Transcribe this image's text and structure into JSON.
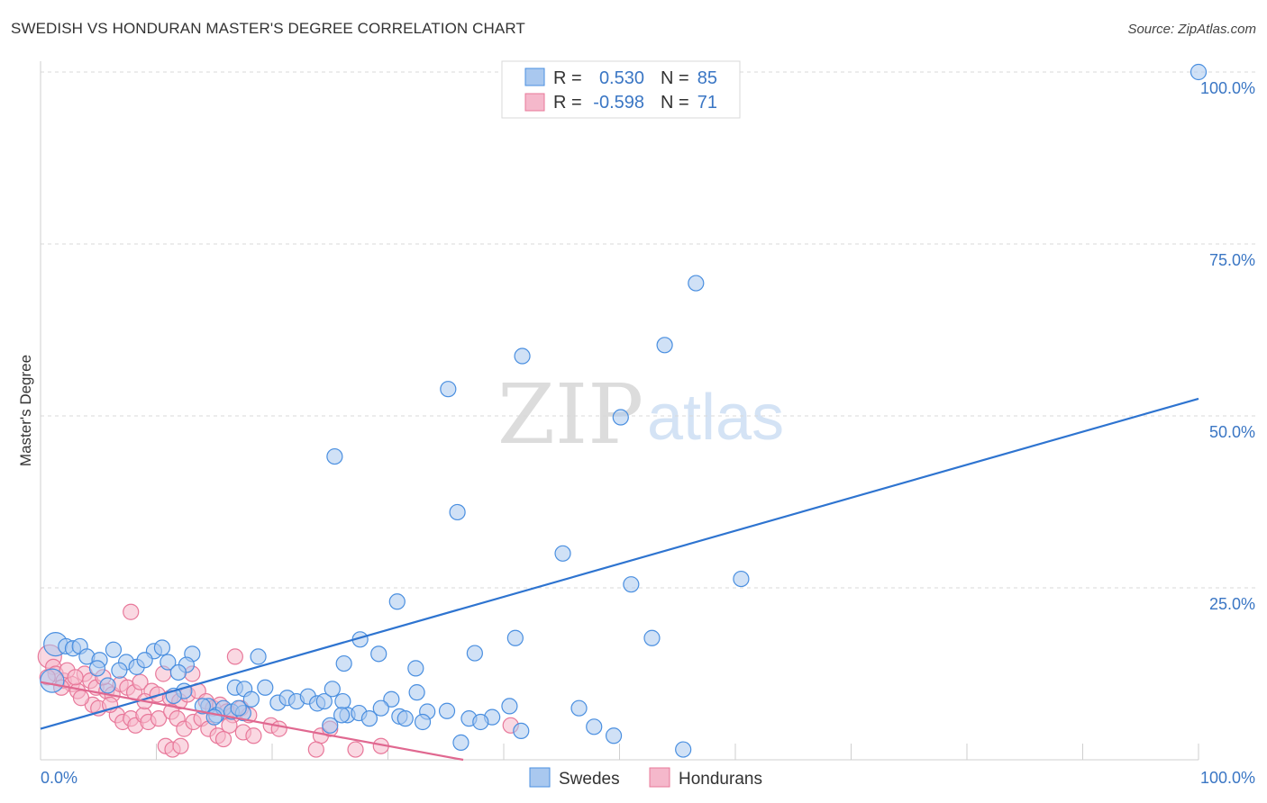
{
  "title": "SWEDISH VS HONDURAN MASTER'S DEGREE CORRELATION CHART",
  "source": "Source: ZipAtlas.com",
  "watermark": {
    "zip": "ZIP",
    "atlas": "atlas"
  },
  "colors": {
    "blue": "#4a8fe0",
    "blue_fill": "#a9c8ef",
    "blue_line": "#2e74d0",
    "pink": "#e8789a",
    "pink_fill": "#f5b8cb",
    "pink_line": "#e06890",
    "grid": "#d9d9d9",
    "tick_text": "#3a76c4"
  },
  "legend": {
    "rows": [
      {
        "r_label": "R =",
        "r_value": "0.530",
        "n_label": "N =",
        "n_value": "85"
      },
      {
        "r_label": "R =",
        "r_value": "-0.598",
        "n_label": "N =",
        "n_value": "71"
      }
    ]
  },
  "bottom_legend": {
    "swedes": "Swedes",
    "hondurans": "Hondurans"
  },
  "chart_data": {
    "type": "scatter",
    "title": "SWEDISH VS HONDURAN MASTER'S DEGREE CORRELATION CHART",
    "xlabel": "",
    "ylabel": "Master's Degree",
    "xlim": [
      0,
      100
    ],
    "ylim": [
      0,
      100
    ],
    "x_tick_labels": [
      "0.0%",
      "100.0%"
    ],
    "y_tick_labels": [
      "100.0%",
      "75.0%",
      "50.0%",
      "25.0%"
    ],
    "y_ticks": [
      100,
      75,
      50,
      25
    ],
    "series": [
      {
        "name": "Swedes",
        "r": 0.53,
        "n": 85,
        "trend": {
          "x": [
            0,
            100
          ],
          "y": [
            4.5,
            52.5
          ]
        },
        "points": [
          [
            100,
            100,
            1
          ],
          [
            56.6,
            69.3,
            1
          ],
          [
            53.9,
            60.3,
            1
          ],
          [
            41.6,
            58.7,
            1
          ],
          [
            35.2,
            53.9,
            1
          ],
          [
            50.1,
            49.8,
            1
          ],
          [
            25.4,
            44.1,
            1
          ],
          [
            36.0,
            36.0,
            1
          ],
          [
            45.1,
            30.0,
            1
          ],
          [
            51.0,
            25.5,
            1
          ],
          [
            60.5,
            26.3,
            1
          ],
          [
            30.8,
            23.0,
            1
          ],
          [
            1.3,
            16.8,
            2
          ],
          [
            2.2,
            16.5,
            1
          ],
          [
            2.8,
            16.2,
            1
          ],
          [
            3.4,
            16.5,
            1
          ],
          [
            6.3,
            16.0,
            1
          ],
          [
            9.8,
            15.8,
            1
          ],
          [
            10.5,
            16.3,
            1
          ],
          [
            13.1,
            15.4,
            1
          ],
          [
            18.8,
            15.0,
            1
          ],
          [
            27.6,
            17.5,
            1
          ],
          [
            29.2,
            15.4,
            1
          ],
          [
            37.5,
            15.5,
            1
          ],
          [
            41.0,
            17.7,
            1
          ],
          [
            52.8,
            17.7,
            1
          ],
          [
            4.0,
            15.0,
            1
          ],
          [
            5.1,
            14.5,
            1
          ],
          [
            7.4,
            14.2,
            1
          ],
          [
            8.3,
            13.5,
            1
          ],
          [
            9.0,
            14.5,
            1
          ],
          [
            11.0,
            14.2,
            1
          ],
          [
            4.9,
            13.3,
            1
          ],
          [
            6.8,
            13.0,
            1
          ],
          [
            12.6,
            13.8,
            1
          ],
          [
            11.9,
            12.7,
            1
          ],
          [
            26.2,
            14.0,
            1
          ],
          [
            32.4,
            13.3,
            1
          ],
          [
            1.0,
            11.5,
            2
          ],
          [
            5.8,
            10.8,
            1
          ],
          [
            12.4,
            10.0,
            1
          ],
          [
            11.5,
            9.3,
            1
          ],
          [
            16.8,
            10.5,
            1
          ],
          [
            17.6,
            10.3,
            1
          ],
          [
            18.2,
            8.8,
            1
          ],
          [
            19.4,
            10.5,
            1
          ],
          [
            20.5,
            8.3,
            1
          ],
          [
            21.3,
            9.0,
            1
          ],
          [
            22.1,
            8.5,
            1
          ],
          [
            23.1,
            9.2,
            1
          ],
          [
            23.9,
            8.2,
            1
          ],
          [
            24.5,
            8.5,
            1
          ],
          [
            25.2,
            10.3,
            1
          ],
          [
            14.5,
            7.8,
            1
          ],
          [
            15.2,
            6.5,
            1
          ],
          [
            15.8,
            7.5,
            1
          ],
          [
            16.5,
            7.0,
            1
          ],
          [
            17.5,
            6.8,
            1
          ],
          [
            14.0,
            7.8,
            1
          ],
          [
            15.0,
            6.2,
            1
          ],
          [
            17.1,
            7.5,
            1
          ],
          [
            30.3,
            8.8,
            1
          ],
          [
            32.5,
            9.8,
            1
          ],
          [
            33.4,
            7.0,
            1
          ],
          [
            35.1,
            7.1,
            1
          ],
          [
            26.1,
            8.5,
            1
          ],
          [
            26.5,
            6.5,
            1
          ],
          [
            27.5,
            6.8,
            1
          ],
          [
            29.4,
            7.5,
            1
          ],
          [
            31.0,
            6.3,
            1
          ],
          [
            33.0,
            5.5,
            1
          ],
          [
            37.0,
            6.0,
            1
          ],
          [
            39.0,
            6.2,
            1
          ],
          [
            28.4,
            6.0,
            1
          ],
          [
            31.5,
            6.0,
            1
          ],
          [
            25.0,
            5.0,
            1
          ],
          [
            26.0,
            6.5,
            1
          ],
          [
            38.0,
            5.5,
            1
          ],
          [
            40.5,
            7.8,
            1
          ],
          [
            41.5,
            4.2,
            1
          ],
          [
            46.5,
            7.5,
            1
          ],
          [
            47.8,
            4.8,
            1
          ],
          [
            49.5,
            3.5,
            1
          ],
          [
            36.3,
            2.5,
            1
          ],
          [
            55.5,
            1.5,
            1
          ]
        ]
      },
      {
        "name": "Hondurans",
        "r": -0.598,
        "n": 71,
        "trend": {
          "x": [
            0,
            36.5
          ],
          "y": [
            11.3,
            0
          ]
        },
        "points": [
          [
            0.8,
            15.0,
            2
          ],
          [
            1.1,
            13.5,
            1
          ],
          [
            1.3,
            12.5,
            1
          ],
          [
            0.6,
            12.0,
            1
          ],
          [
            2.0,
            11.5,
            1
          ],
          [
            2.7,
            11.0,
            1
          ],
          [
            3.2,
            10.0,
            1
          ],
          [
            3.8,
            12.5,
            1
          ],
          [
            4.3,
            11.5,
            1
          ],
          [
            4.8,
            10.5,
            1
          ],
          [
            5.7,
            10.0,
            1
          ],
          [
            6.2,
            9.5,
            1
          ],
          [
            6.9,
            11.0,
            1
          ],
          [
            7.5,
            10.5,
            1
          ],
          [
            8.1,
            9.8,
            1
          ],
          [
            8.6,
            11.3,
            1
          ],
          [
            7.8,
            21.5,
            1
          ],
          [
            9.6,
            10.0,
            1
          ],
          [
            10.1,
            9.5,
            1
          ],
          [
            10.6,
            12.5,
            1
          ],
          [
            11.2,
            9.0,
            1
          ],
          [
            12.0,
            8.5,
            1
          ],
          [
            12.7,
            9.5,
            1
          ],
          [
            13.1,
            12.5,
            1
          ],
          [
            13.6,
            10.0,
            1
          ],
          [
            14.3,
            8.5,
            1
          ],
          [
            14.9,
            7.5,
            1
          ],
          [
            15.5,
            8.0,
            1
          ],
          [
            16.1,
            7.0,
            1
          ],
          [
            16.6,
            6.5,
            1
          ],
          [
            16.8,
            15.0,
            1
          ],
          [
            17.3,
            7.5,
            1
          ],
          [
            18.0,
            6.5,
            1
          ],
          [
            4.5,
            8.0,
            1
          ],
          [
            5.0,
            7.5,
            1
          ],
          [
            6.6,
            6.5,
            1
          ],
          [
            7.1,
            5.5,
            1
          ],
          [
            7.8,
            6.0,
            1
          ],
          [
            8.2,
            5.0,
            1
          ],
          [
            8.9,
            6.5,
            1
          ],
          [
            9.3,
            5.5,
            1
          ],
          [
            10.2,
            6.0,
            1
          ],
          [
            11.3,
            7.0,
            1
          ],
          [
            11.8,
            6.0,
            1
          ],
          [
            12.4,
            4.5,
            1
          ],
          [
            13.2,
            5.5,
            1
          ],
          [
            13.9,
            6.0,
            1
          ],
          [
            14.5,
            4.5,
            1
          ],
          [
            15.3,
            3.5,
            1
          ],
          [
            16.3,
            5.0,
            1
          ],
          [
            17.5,
            4.0,
            1
          ],
          [
            18.4,
            3.5,
            1
          ],
          [
            19.9,
            5.0,
            1
          ],
          [
            20.6,
            4.5,
            1
          ],
          [
            24.2,
            3.5,
            1
          ],
          [
            25.0,
            4.5,
            1
          ],
          [
            23.8,
            1.5,
            1
          ],
          [
            27.2,
            1.5,
            1
          ],
          [
            29.4,
            2.0,
            1
          ],
          [
            10.8,
            2.0,
            1
          ],
          [
            11.4,
            1.5,
            1
          ],
          [
            12.1,
            2.0,
            1
          ],
          [
            15.8,
            3.0,
            1
          ],
          [
            40.6,
            5.0,
            1
          ],
          [
            2.3,
            13.0,
            1
          ],
          [
            3.0,
            12.0,
            1
          ],
          [
            5.4,
            12.0,
            1
          ],
          [
            9.0,
            8.5,
            1
          ],
          [
            1.8,
            10.5,
            1
          ],
          [
            6.0,
            8.0,
            1
          ],
          [
            3.5,
            9.0,
            1
          ]
        ]
      }
    ]
  }
}
